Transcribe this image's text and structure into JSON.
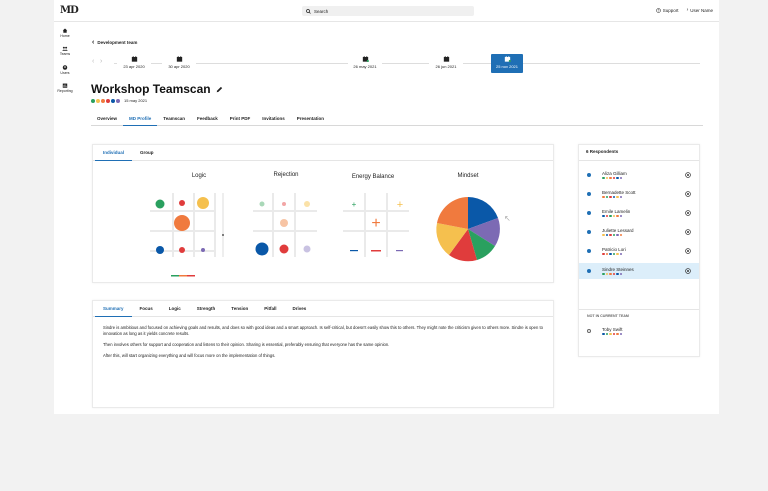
{
  "header": {
    "logo": "MD",
    "search_placeholder": "Search",
    "support": "Support",
    "user": "User Name"
  },
  "sidebar": {
    "items": [
      {
        "label": "Home",
        "icon": "home-icon"
      },
      {
        "label": "Teams",
        "icon": "team-icon"
      },
      {
        "label": "Users",
        "icon": "user-icon"
      },
      {
        "label": "Reporting",
        "icon": "report-icon"
      }
    ]
  },
  "breadcrumb": "Development team",
  "timeline": [
    {
      "date": "23 apr 2020"
    },
    {
      "date": "30 apr 2020"
    },
    {
      "date": "26 may 2021"
    },
    {
      "date": "26 jun 2021"
    },
    {
      "date": "25 nov 2021",
      "active": true
    }
  ],
  "page": {
    "title": "Workshop Teamscan",
    "date": "15 may 2021"
  },
  "tabs": [
    "Overview",
    "MD Profile",
    "Teamscan",
    "Feedback",
    "Print PDF",
    "Invitations",
    "Presentation"
  ],
  "active_tab": "MD Profile",
  "view_tabs": [
    "Individual",
    "Group"
  ],
  "charts": {
    "logic": "Logic",
    "rejection": "Rejection",
    "energy": "Energy Balance",
    "mindset": "Mindset"
  },
  "summary_tabs": [
    "Summary",
    "Focus",
    "Logic",
    "Strength",
    "Tension",
    "Pitfall",
    "Drives"
  ],
  "summary": {
    "p1": "Sindre is ambitious and focused on achieving goals and results, and does so with good ideas and a smart approach. Is self-critical, but doesn't easily show this to others. They might note the criticism given to others more. Sindre is open to innovation as long as it yields concrete results.",
    "p2": "Then involves others for support and cooperation and listens to their opinion. Sharing is essential, preferably ensuring that everyone has the same opinion.",
    "p3": "After this, will start organizing everything and will focus more on the implementation of things."
  },
  "respondents": {
    "header": "6 Respondents",
    "list": [
      "Aliza Gilliam",
      "Bernadette Scott",
      "Emile Lamelin",
      "Juliette Lessard",
      "Patricio Lori",
      "Sindre Steinnes"
    ],
    "selected": "Sindre Steinnes",
    "not_in_team_label": "NOT IN CURRENT TEAM",
    "not_in_team": [
      "Toby Swift"
    ]
  },
  "colors": {
    "accent": "#1f6fb5",
    "blue": "#0a58a8",
    "red": "#e03c3c",
    "orange": "#f07a3e",
    "yellow": "#f5c04e",
    "green": "#2aa05f",
    "purple": "#7c6ab4"
  }
}
